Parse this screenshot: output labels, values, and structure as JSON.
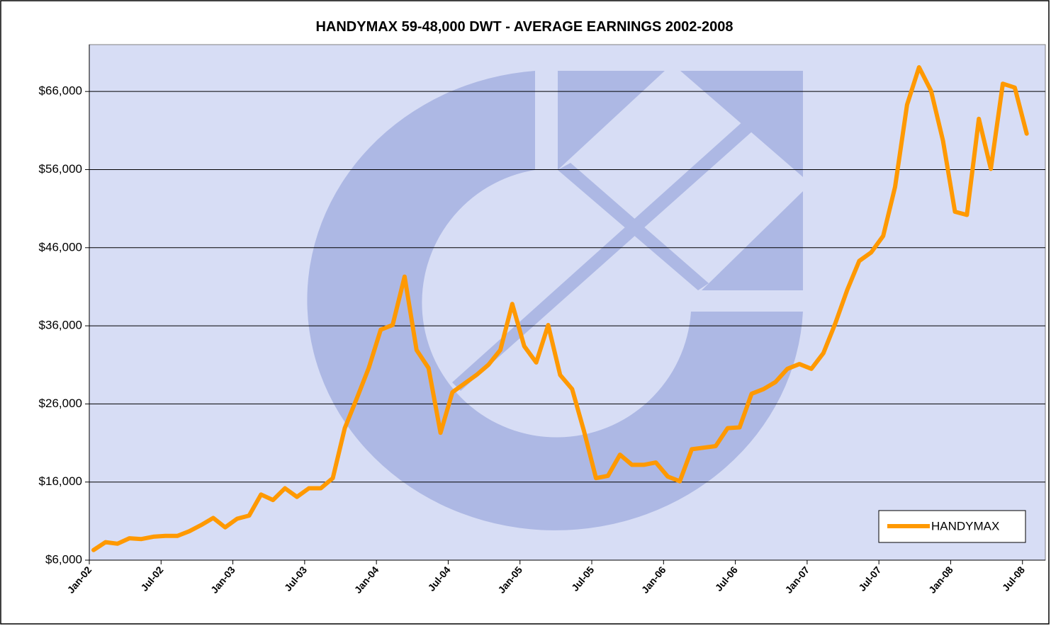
{
  "chart_data": {
    "type": "line",
    "title": "HANDYMAX 59-48,000 DWT - AVERAGE EARNINGS 2002-2008",
    "categories": [
      "Jan-02",
      null,
      null,
      null,
      null,
      null,
      "Jul-02",
      null,
      null,
      null,
      null,
      null,
      "Jan-03",
      null,
      null,
      null,
      null,
      null,
      "Jul-03",
      null,
      null,
      null,
      null,
      null,
      "Jan-04",
      null,
      null,
      null,
      null,
      null,
      "Jul-04",
      null,
      null,
      null,
      null,
      null,
      "Jan-05",
      null,
      null,
      null,
      null,
      null,
      "Jul-05",
      null,
      null,
      null,
      null,
      null,
      "Jan-06",
      null,
      null,
      null,
      null,
      null,
      "Jul-06",
      null,
      null,
      null,
      null,
      null,
      "Jan-07",
      null,
      null,
      null,
      null,
      null,
      "Jul-07",
      null,
      null,
      null,
      null,
      null,
      "Jan-08",
      null,
      null,
      null,
      null,
      null,
      "Jul-08"
    ],
    "series": [
      {
        "name": "HANDYMAX",
        "color": "#ff9900",
        "values": [
          7300,
          8300,
          8100,
          8800,
          8700,
          9000,
          9100,
          9100,
          9700,
          10500,
          11400,
          10200,
          11300,
          11700,
          14400,
          13700,
          15200,
          14100,
          15200,
          15200,
          16500,
          22900,
          26700,
          30600,
          35500,
          36100,
          42300,
          32900,
          30600,
          22300,
          27500,
          28600,
          29700,
          31000,
          32900,
          38800,
          33400,
          31300,
          36100,
          29700,
          27900,
          22500,
          16500,
          16800,
          19500,
          18200,
          18200,
          18500,
          16700,
          16100,
          20200,
          20400,
          20600,
          22900,
          23000,
          27300,
          27900,
          28800,
          30500,
          31100,
          30500,
          32500,
          36300,
          40600,
          44300,
          45400,
          47500,
          53800,
          64300,
          69100,
          66100,
          59700,
          50600,
          50200,
          62500,
          56100,
          67000,
          66500,
          60600
        ]
      }
    ],
    "ylim": [
      6000,
      72000
    ],
    "yticks": [
      {
        "value": 6000,
        "label": "$6,000"
      },
      {
        "value": 16000,
        "label": "$16,000"
      },
      {
        "value": 26000,
        "label": "$26,000"
      },
      {
        "value": 36000,
        "label": "$36,000"
      },
      {
        "value": 46000,
        "label": "$46,000"
      },
      {
        "value": 56000,
        "label": "$56,000"
      },
      {
        "value": 66000,
        "label": "$66,000"
      }
    ],
    "grid": true,
    "legend": "lower right"
  }
}
